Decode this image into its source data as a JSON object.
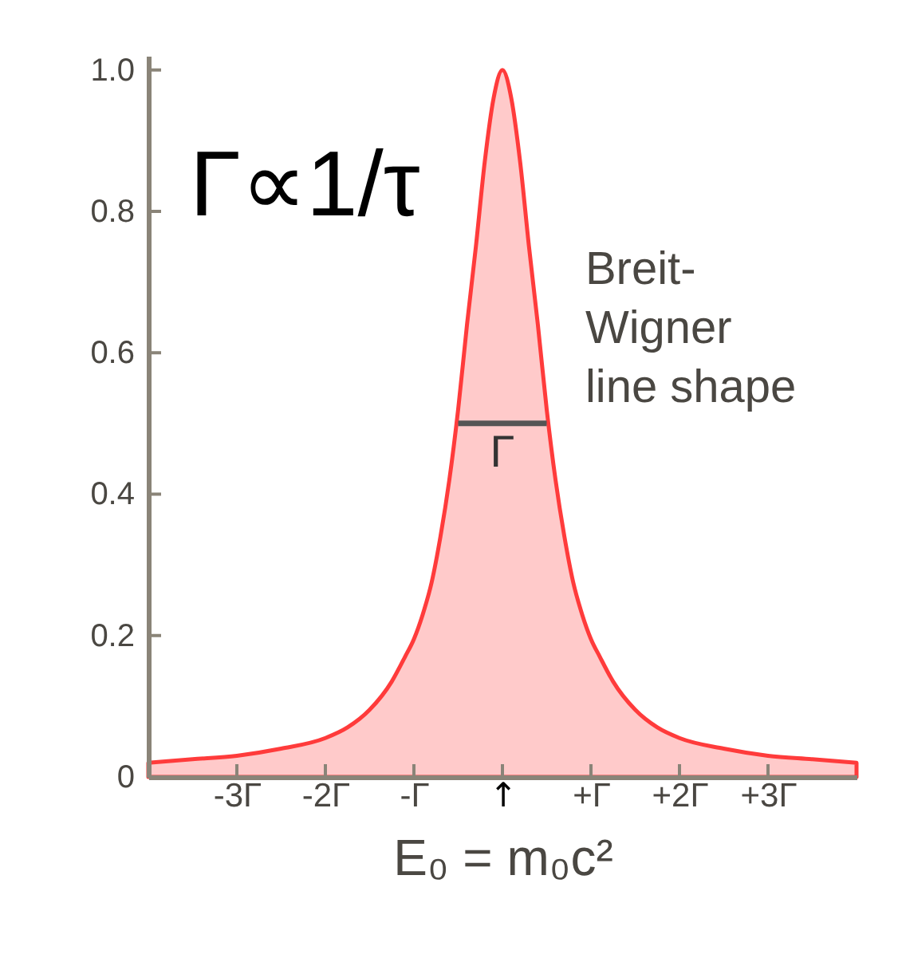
{
  "chart_data": {
    "type": "area",
    "xlim": [
      -4,
      4
    ],
    "ylim": [
      0,
      1.02
    ],
    "xlabel": "E₀ = m₀c²",
    "xticks": [
      {
        "value": -3,
        "label": "-3Γ"
      },
      {
        "value": -2,
        "label": "-2Γ"
      },
      {
        "value": -1,
        "label": "-Γ"
      },
      {
        "value": 0,
        "label": "↑"
      },
      {
        "value": 1,
        "label": "+Γ"
      },
      {
        "value": 2,
        "label": "+2Γ"
      },
      {
        "value": 3,
        "label": "+3Γ"
      }
    ],
    "yticks": [
      0,
      0.2,
      0.4,
      0.6,
      0.8,
      {
        "value": 1,
        "label": "1.0"
      }
    ],
    "series": [
      {
        "color": "#ff3b3b",
        "x": [
          -4,
          -3.5,
          -3,
          -2.5,
          -2,
          -1.75,
          -1.5,
          -1.25,
          -1.1,
          -1,
          -0.9,
          -0.8,
          -0.7,
          -0.6,
          -0.5,
          -0.4,
          -0.3,
          -0.2,
          -0.1,
          0,
          0.1,
          0.2,
          0.3,
          0.4,
          0.5,
          0.6,
          0.7,
          0.8,
          0.9,
          1,
          1.1,
          1.25,
          1.5,
          1.75,
          2,
          2.5,
          3,
          3.5,
          4
        ],
        "values": [
          0.02,
          0.025,
          0.03,
          0.04,
          0.055,
          0.07,
          0.095,
          0.135,
          0.17,
          0.195,
          0.23,
          0.275,
          0.34,
          0.42,
          0.52,
          0.64,
          0.75,
          0.87,
          0.96,
          1.0,
          0.96,
          0.87,
          0.75,
          0.64,
          0.52,
          0.42,
          0.34,
          0.275,
          0.23,
          0.195,
          0.17,
          0.135,
          0.095,
          0.07,
          0.055,
          0.04,
          0.03,
          0.025,
          0.02
        ]
      },
      {
        "type": "line",
        "name": "Γ",
        "color": "#555555",
        "x": [
          -0.5,
          -0.25,
          0,
          0.25,
          0.5
        ],
        "values": [
          0.5,
          0.5,
          0.5,
          0.5,
          0.5
        ]
      }
    ],
    "annotations": [
      "Γ∝1/τ",
      "Breit-Wigner line shape"
    ]
  }
}
